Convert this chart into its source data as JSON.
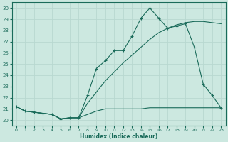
{
  "xlabel": "Humidex (Indice chaleur)",
  "bg_color": "#cce8e0",
  "line_color": "#1a6b5a",
  "grid_color": "#b8d8d0",
  "xlim": [
    -0.5,
    23.5
  ],
  "ylim": [
    19.5,
    30.5
  ],
  "yticks": [
    20,
    21,
    22,
    23,
    24,
    25,
    26,
    27,
    28,
    29,
    30
  ],
  "xticks": [
    0,
    1,
    2,
    3,
    4,
    5,
    6,
    7,
    8,
    9,
    10,
    11,
    12,
    13,
    14,
    15,
    16,
    17,
    18,
    19,
    20,
    21,
    22,
    23
  ],
  "series1_x": [
    0,
    1,
    2,
    3,
    4,
    5,
    6,
    7,
    8,
    9,
    10,
    11,
    12,
    13,
    14,
    15,
    16,
    17,
    18,
    19,
    20,
    21,
    22,
    23
  ],
  "series1_y": [
    21.2,
    20.8,
    20.7,
    20.6,
    20.5,
    20.1,
    20.2,
    20.2,
    22.2,
    24.6,
    25.3,
    26.2,
    26.2,
    27.5,
    29.1,
    30.0,
    29.1,
    28.2,
    28.4,
    28.6,
    26.5,
    23.2,
    22.2,
    21.1
  ],
  "series2_x": [
    0,
    1,
    2,
    3,
    4,
    5,
    6,
    7,
    8,
    9,
    10,
    11,
    12,
    13,
    14,
    15,
    16,
    17,
    18,
    19,
    20,
    21,
    22,
    23
  ],
  "series2_y": [
    21.2,
    20.8,
    20.7,
    20.6,
    20.5,
    20.1,
    20.2,
    20.2,
    21.5,
    22.5,
    23.5,
    24.3,
    25.1,
    25.8,
    26.5,
    27.2,
    27.8,
    28.2,
    28.5,
    28.7,
    28.8,
    28.8,
    28.7,
    28.6
  ],
  "series3_x": [
    0,
    1,
    2,
    3,
    4,
    5,
    6,
    7,
    8,
    9,
    10,
    11,
    12,
    13,
    14,
    15,
    16,
    17,
    18,
    19,
    20,
    21,
    22,
    23
  ],
  "series3_y": [
    21.2,
    20.8,
    20.7,
    20.6,
    20.5,
    20.1,
    20.2,
    20.2,
    20.5,
    20.8,
    21.0,
    21.0,
    21.0,
    21.0,
    21.0,
    21.1,
    21.1,
    21.1,
    21.1,
    21.1,
    21.1,
    21.1,
    21.1,
    21.1
  ]
}
